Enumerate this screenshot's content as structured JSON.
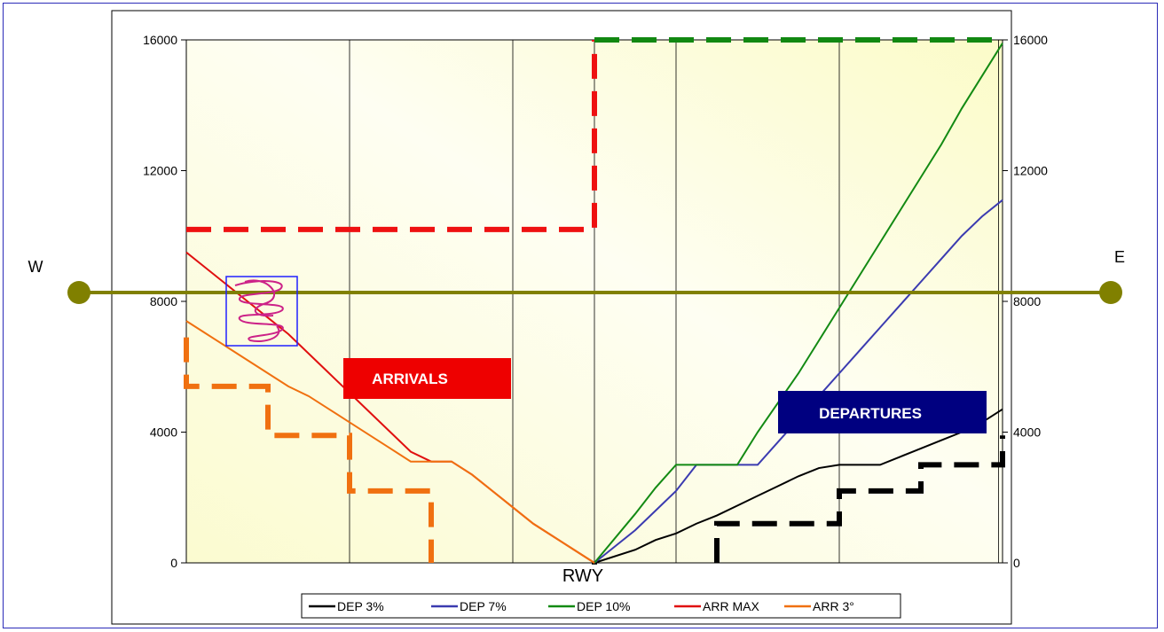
{
  "chart_data": {
    "type": "line",
    "xlim": [
      -10,
      10
    ],
    "ylim": [
      0,
      16000
    ],
    "y_ticks": [
      0,
      4000,
      8000,
      12000,
      16000
    ],
    "grid": true,
    "legend_position": "bottom",
    "x_label": "RWY",
    "direction_labels": {
      "west": "W",
      "east": "E"
    },
    "series": [
      {
        "name": "DEP 3%",
        "color": "#000000",
        "points": [
          [
            0,
            0
          ],
          [
            1,
            400
          ],
          [
            1.5,
            700
          ],
          [
            2,
            900
          ],
          [
            2.5,
            1200
          ],
          [
            3,
            1450
          ],
          [
            3.5,
            1750
          ],
          [
            4,
            2050
          ],
          [
            4.5,
            2350
          ],
          [
            5,
            2650
          ],
          [
            5.5,
            2900
          ],
          [
            6,
            3000
          ],
          [
            6.5,
            3000
          ],
          [
            7,
            3000
          ],
          [
            7.5,
            3250
          ],
          [
            8,
            3500
          ],
          [
            8.5,
            3750
          ],
          [
            9,
            4000
          ],
          [
            9.5,
            4300
          ],
          [
            10,
            4700
          ]
        ]
      },
      {
        "name": "DEP 7%",
        "color": "#3b3bb0",
        "points": [
          [
            0,
            0
          ],
          [
            1,
            1000
          ],
          [
            1.5,
            1600
          ],
          [
            2,
            2200
          ],
          [
            2.5,
            3000
          ],
          [
            3,
            3000
          ],
          [
            3.5,
            3000
          ],
          [
            4,
            3000
          ],
          [
            4.5,
            3700
          ],
          [
            5,
            4400
          ],
          [
            5.5,
            5100
          ],
          [
            6,
            5800
          ],
          [
            6.5,
            6500
          ],
          [
            7,
            7200
          ],
          [
            7.5,
            7900
          ],
          [
            8,
            8600
          ],
          [
            8.5,
            9300
          ],
          [
            9,
            10000
          ],
          [
            9.5,
            10600
          ],
          [
            10,
            11100
          ]
        ]
      },
      {
        "name": "DEP 10%",
        "color": "#138a13",
        "points": [
          [
            0,
            0
          ],
          [
            1,
            1500
          ],
          [
            1.5,
            2300
          ],
          [
            2,
            3000
          ],
          [
            2.5,
            3000
          ],
          [
            3,
            3000
          ],
          [
            3.5,
            3000
          ],
          [
            4,
            4000
          ],
          [
            4.5,
            4900
          ],
          [
            5,
            5800
          ],
          [
            5.5,
            6800
          ],
          [
            6,
            7800
          ],
          [
            6.5,
            8800
          ],
          [
            7,
            9800
          ],
          [
            7.5,
            10800
          ],
          [
            8,
            11800
          ],
          [
            8.5,
            12800
          ],
          [
            9,
            13900
          ],
          [
            9.5,
            14900
          ],
          [
            10,
            15900
          ]
        ]
      },
      {
        "name": "ARR MAX",
        "color": "#e01010",
        "points": [
          [
            -10,
            9500
          ],
          [
            -9.5,
            9000
          ],
          [
            -9,
            8500
          ],
          [
            -8.5,
            8000
          ],
          [
            -8,
            7500
          ],
          [
            -7.5,
            7000
          ],
          [
            -7,
            6400
          ],
          [
            -6.5,
            5800
          ],
          [
            -6,
            5200
          ],
          [
            -5.5,
            4600
          ],
          [
            -5,
            4000
          ],
          [
            -4.5,
            3400
          ],
          [
            -4,
            3100
          ],
          [
            -3.5,
            3100
          ],
          [
            -3,
            2700
          ],
          [
            -2.5,
            2200
          ],
          [
            -2,
            1700
          ],
          [
            -1.5,
            1200
          ],
          [
            -1,
            800
          ],
          [
            -0.5,
            400
          ],
          [
            0,
            0
          ]
        ]
      },
      {
        "name": "ARR 3°",
        "color": "#f07010",
        "points": [
          [
            -10,
            7400
          ],
          [
            -9.5,
            7000
          ],
          [
            -9,
            6600
          ],
          [
            -8.5,
            6200
          ],
          [
            -8,
            5800
          ],
          [
            -7.5,
            5400
          ],
          [
            -7,
            5100
          ],
          [
            -6.5,
            4700
          ],
          [
            -6,
            4300
          ],
          [
            -5.5,
            3900
          ],
          [
            -5,
            3500
          ],
          [
            -4.5,
            3100
          ],
          [
            -4,
            3100
          ],
          [
            -3.5,
            3100
          ],
          [
            -3,
            2700
          ],
          [
            -2.5,
            2200
          ],
          [
            -2,
            1700
          ],
          [
            -1.5,
            1200
          ],
          [
            -1,
            800
          ],
          [
            -0.5,
            400
          ],
          [
            0,
            0
          ]
        ]
      }
    ],
    "dashed_limits": [
      {
        "name": "arrival-max-limit",
        "color": "#ee1111",
        "points": [
          [
            -10,
            10200
          ],
          [
            0,
            10200
          ],
          [
            0,
            16000
          ]
        ]
      },
      {
        "name": "arrival-floor-limit",
        "color": "#f07010",
        "points": [
          [
            -10,
            6900
          ],
          [
            -10,
            5400
          ],
          [
            -8,
            5400
          ],
          [
            -8,
            3900
          ],
          [
            -6,
            3900
          ],
          [
            -6,
            2200
          ],
          [
            -4,
            2200
          ],
          [
            -4,
            0
          ]
        ]
      },
      {
        "name": "east-ceiling-limit",
        "color": "#118811",
        "points": [
          [
            0,
            16000
          ],
          [
            10,
            16000
          ]
        ]
      },
      {
        "name": "departure-floor-limit",
        "color": "#000000",
        "points": [
          [
            0,
            0
          ],
          [
            0,
            -50
          ]
        ]
      },
      {
        "name": "departure-step-limit",
        "color": "#000000",
        "points": [
          [
            3,
            0
          ],
          [
            3,
            1200
          ],
          [
            6,
            1200
          ],
          [
            6,
            2200
          ],
          [
            8,
            2200
          ],
          [
            8,
            3000
          ],
          [
            10,
            3000
          ],
          [
            10,
            3900
          ]
        ]
      }
    ],
    "annotations": {
      "arrivals": {
        "text": "ARRIVALS",
        "color": "#ee0000"
      },
      "departures": {
        "text": "DEPARTURES",
        "color": "#000080"
      }
    },
    "overlay": {
      "line_color": "#808000",
      "scribble_color": "#cc2288",
      "box_color": "#2020ff"
    }
  }
}
